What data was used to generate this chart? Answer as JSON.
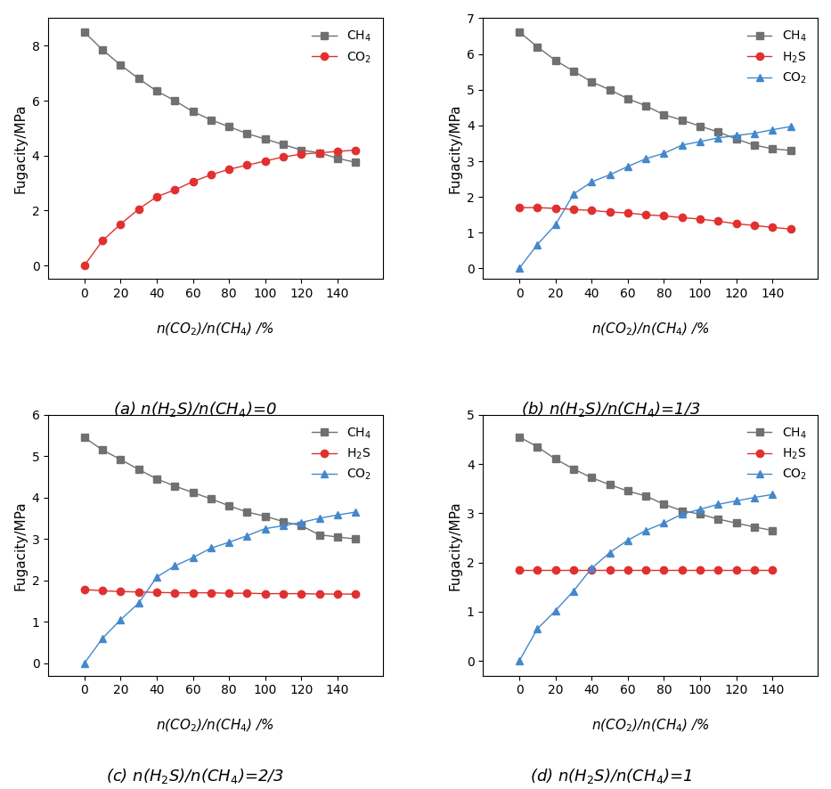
{
  "x16": [
    0,
    10,
    20,
    30,
    40,
    50,
    60,
    70,
    80,
    90,
    100,
    110,
    120,
    130,
    140,
    150
  ],
  "x15": [
    0,
    10,
    20,
    30,
    40,
    50,
    60,
    70,
    80,
    90,
    100,
    110,
    120,
    130,
    140
  ],
  "a_CH4": [
    8.5,
    7.85,
    7.3,
    6.8,
    6.35,
    6.0,
    5.6,
    5.3,
    5.05,
    4.8,
    4.6,
    4.4,
    4.2,
    4.1,
    3.9,
    3.75
  ],
  "a_CO2": [
    0.0,
    0.9,
    1.5,
    2.05,
    2.5,
    2.75,
    3.05,
    3.3,
    3.5,
    3.65,
    3.8,
    3.95,
    4.05,
    4.1,
    4.15,
    4.2
  ],
  "b_CH4": [
    6.62,
    6.2,
    5.82,
    5.52,
    5.22,
    5.0,
    4.75,
    4.55,
    4.3,
    4.15,
    3.98,
    3.82,
    3.62,
    3.45,
    3.35,
    3.3
  ],
  "b_H2S": [
    1.7,
    1.7,
    1.68,
    1.65,
    1.62,
    1.58,
    1.55,
    1.5,
    1.47,
    1.42,
    1.38,
    1.32,
    1.25,
    1.2,
    1.15,
    1.1
  ],
  "b_CO2": [
    0.0,
    0.67,
    1.22,
    2.08,
    2.42,
    2.62,
    2.85,
    3.07,
    3.22,
    3.45,
    3.55,
    3.65,
    3.72,
    3.78,
    3.88,
    3.97
  ],
  "c_CH4": [
    5.45,
    5.15,
    4.92,
    4.68,
    4.45,
    4.28,
    4.12,
    3.97,
    3.8,
    3.65,
    3.55,
    3.42,
    3.32,
    3.1,
    3.05,
    3.0
  ],
  "c_H2S": [
    1.78,
    1.75,
    1.73,
    1.72,
    1.71,
    1.7,
    1.7,
    1.7,
    1.69,
    1.69,
    1.68,
    1.68,
    1.68,
    1.67,
    1.67,
    1.67
  ],
  "c_CO2": [
    0.0,
    0.6,
    1.05,
    1.45,
    2.08,
    2.35,
    2.55,
    2.78,
    2.92,
    3.08,
    3.25,
    3.32,
    3.4,
    3.5,
    3.58,
    3.65
  ],
  "d_CH4": [
    4.55,
    4.35,
    4.1,
    3.9,
    3.72,
    3.58,
    3.45,
    3.35,
    3.18,
    3.05,
    2.98,
    2.88,
    2.8,
    2.72,
    2.65
  ],
  "d_H2S": [
    1.85,
    1.85,
    1.85,
    1.85,
    1.85,
    1.85,
    1.85,
    1.85,
    1.85,
    1.85,
    1.85,
    1.85,
    1.85,
    1.85,
    1.85
  ],
  "d_CO2": [
    0.0,
    0.65,
    1.02,
    1.42,
    1.88,
    2.2,
    2.45,
    2.65,
    2.8,
    2.98,
    3.08,
    3.18,
    3.25,
    3.32,
    3.38
  ],
  "color_CH4": "#707070",
  "color_H2S": "#e03030",
  "color_CO2_a": "#e03030",
  "color_CO2_bcd": "#4488cc",
  "ylabel": "Fugacity/MPa",
  "title_a": "(a) $n$(H$_2$S)/$n$(CH$_4$)=0",
  "title_b": "(b) $n$(H$_2$S)/$n$(CH$_4$)=1/3",
  "title_c": "(c) $n$(H$_2$S)/$n$(CH$_4$)=2/3",
  "title_d": "(d) $n$(H$_2$S)/$n$(CH$_4$)=1",
  "ylim_a": [
    -0.5,
    9.0
  ],
  "ylim_b": [
    -0.3,
    7.0
  ],
  "ylim_c": [
    -0.3,
    6.0
  ],
  "ylim_d": [
    -0.3,
    5.0
  ],
  "yticks_a": [
    0,
    2,
    4,
    6,
    8
  ],
  "yticks_b": [
    0,
    1,
    2,
    3,
    4,
    5,
    6,
    7
  ],
  "yticks_c": [
    0,
    1,
    2,
    3,
    4,
    5,
    6
  ],
  "yticks_d": [
    0,
    1,
    2,
    3,
    4,
    5
  ],
  "xlim": [
    -20,
    165
  ],
  "xticks": [
    0,
    20,
    40,
    60,
    80,
    100,
    120,
    140
  ],
  "legend_CH4": "CH$_4$",
  "legend_H2S": "H$_2$S",
  "legend_CO2": "CO$_2$"
}
